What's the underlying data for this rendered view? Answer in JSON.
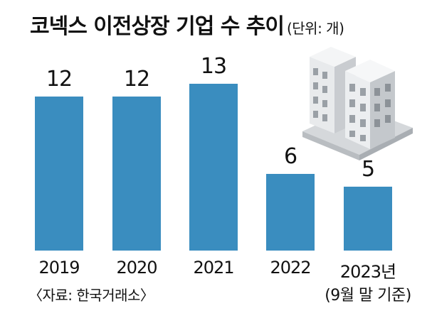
{
  "header": {
    "title": "코넥스 이전상장 기업 수 추이",
    "unit": "(단위: 개)"
  },
  "source": "〈자료: 한국거래소〉",
  "colors": {
    "bar": "#3a8dbf",
    "building_front": "#e8eaec",
    "building_side": "#c9ccd0",
    "building_window": "#9aa0a6",
    "ground": "#d5d8db"
  },
  "illustration": "office-buildings-icon",
  "chart_data": {
    "type": "bar",
    "categories": [
      "2019",
      "2020",
      "2021",
      "2022",
      "2023년"
    ],
    "category_notes": [
      "",
      "",
      "",
      "",
      "(9월 말 기준)"
    ],
    "values": [
      12,
      12,
      13,
      6,
      5
    ],
    "title": "코넥스 이전상장 기업 수 추이",
    "unit": "(단위: 개)",
    "ylim": [
      0,
      13
    ],
    "grid": false,
    "legend": "none"
  }
}
